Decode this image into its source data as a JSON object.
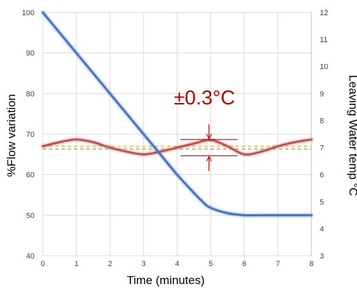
{
  "chart_data": {
    "type": "line",
    "title": "",
    "xlabel": "Time (minutes)",
    "ylabel_left": "%Flow variation",
    "ylabel_right": "Leaving Water temp °C",
    "xlim": [
      0,
      8
    ],
    "ylim_left": [
      40,
      100
    ],
    "ylim_right": [
      3,
      12
    ],
    "x_ticks": [
      "0",
      "1",
      "2",
      "3",
      "4",
      "5",
      "6",
      "7",
      "8"
    ],
    "y_ticks_left": [
      "40",
      "50",
      "60",
      "70",
      "80",
      "90",
      "100"
    ],
    "y_ticks_right": [
      "3",
      "4",
      "5",
      "6",
      "7",
      "8",
      "9",
      "10",
      "11",
      "12"
    ],
    "grid": true,
    "series": [
      {
        "axis": "left",
        "color": "#4472c4",
        "x": [
          0,
          0.5,
          1,
          1.5,
          2,
          2.5,
          3,
          3.5,
          4,
          4.5,
          4.8,
          5,
          5.5,
          6,
          6.5,
          7,
          8
        ],
        "y": [
          100,
          95,
          90,
          85,
          80,
          75,
          70,
          65,
          60,
          55.5,
          53,
          51.8,
          50.5,
          50,
          50,
          50,
          50
        ]
      },
      {
        "axis": "right",
        "color": "#c0504d",
        "x": [
          0,
          0.5,
          1,
          1.5,
          2,
          2.5,
          3,
          3.5,
          4,
          4.5,
          5,
          5.5,
          6,
          6.5,
          7,
          7.5,
          8
        ],
        "y": [
          7.05,
          7.2,
          7.3,
          7.2,
          7.0,
          6.85,
          6.75,
          6.85,
          7.0,
          7.15,
          7.28,
          7.05,
          6.75,
          6.85,
          7.05,
          7.2,
          7.3
        ]
      },
      {
        "axis": "right",
        "style": "dashed",
        "color": "#9bbb59",
        "x": [
          0,
          8
        ],
        "y": [
          7.0,
          7.0
        ]
      }
    ],
    "annotations": [
      {
        "text": "±0.3°C",
        "color": "#c00000"
      }
    ]
  }
}
